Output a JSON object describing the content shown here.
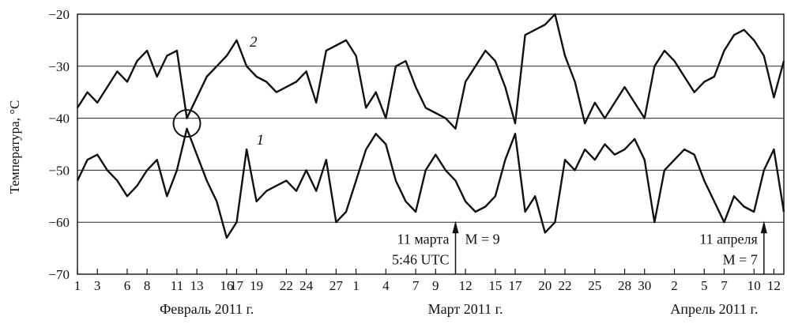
{
  "chart_data": {
    "type": "line",
    "title": "",
    "ylabel": "Температура, °C",
    "xlabel": "",
    "ylim": [
      -70,
      -20
    ],
    "xlim": [
      "2011-02-01",
      "2011-04-13"
    ],
    "grid": "horizontal",
    "y_ticks": [
      -20,
      -30,
      -40,
      -50,
      -60,
      -70
    ],
    "x_ticks": [
      {
        "date": "2011-02-01",
        "label": "1"
      },
      {
        "date": "2011-02-03",
        "label": "3"
      },
      {
        "date": "2011-02-06",
        "label": "6"
      },
      {
        "date": "2011-02-08",
        "label": "8"
      },
      {
        "date": "2011-02-11",
        "label": "11"
      },
      {
        "date": "2011-02-13",
        "label": "13"
      },
      {
        "date": "2011-02-16",
        "label": "16"
      },
      {
        "date": "2011-02-17",
        "label": "17"
      },
      {
        "date": "2011-02-19",
        "label": "19"
      },
      {
        "date": "2011-02-22",
        "label": "22"
      },
      {
        "date": "2011-02-24",
        "label": "24"
      },
      {
        "date": "2011-02-27",
        "label": "27"
      },
      {
        "date": "2011-03-01",
        "label": "1"
      },
      {
        "date": "2011-03-04",
        "label": "4"
      },
      {
        "date": "2011-03-07",
        "label": "7"
      },
      {
        "date": "2011-03-09",
        "label": "9"
      },
      {
        "date": "2011-03-12",
        "label": "12"
      },
      {
        "date": "2011-03-15",
        "label": "15"
      },
      {
        "date": "2011-03-17",
        "label": "17"
      },
      {
        "date": "2011-03-20",
        "label": "20"
      },
      {
        "date": "2011-03-22",
        "label": "22"
      },
      {
        "date": "2011-03-25",
        "label": "25"
      },
      {
        "date": "2011-03-28",
        "label": "28"
      },
      {
        "date": "2011-03-30",
        "label": "30"
      },
      {
        "date": "2011-04-02",
        "label": "2"
      },
      {
        "date": "2011-04-05",
        "label": "5"
      },
      {
        "date": "2011-04-07",
        "label": "7"
      },
      {
        "date": "2011-04-10",
        "label": "10"
      },
      {
        "date": "2011-04-12",
        "label": "12"
      }
    ],
    "month_labels": [
      {
        "center_date": "2011-02-14",
        "text": "Февраль 2011 г."
      },
      {
        "center_date": "2011-03-12",
        "text": "Март 2011 г."
      },
      {
        "center_date": "2011-04-06",
        "text": "Апрель 2011 г."
      }
    ],
    "series": [
      {
        "name": "2",
        "x": [
          "2011-02-01",
          "2011-02-02",
          "2011-02-03",
          "2011-02-04",
          "2011-02-05",
          "2011-02-06",
          "2011-02-07",
          "2011-02-08",
          "2011-02-09",
          "2011-02-10",
          "2011-02-11",
          "2011-02-12",
          "2011-02-13",
          "2011-02-14",
          "2011-02-15",
          "2011-02-16",
          "2011-02-17",
          "2011-02-18",
          "2011-02-19",
          "2011-02-20",
          "2011-02-21",
          "2011-02-22",
          "2011-02-23",
          "2011-02-24",
          "2011-02-25",
          "2011-02-26",
          "2011-02-27",
          "2011-02-28",
          "2011-03-01",
          "2011-03-02",
          "2011-03-03",
          "2011-03-04",
          "2011-03-05",
          "2011-03-06",
          "2011-03-07",
          "2011-03-08",
          "2011-03-09",
          "2011-03-10",
          "2011-03-11",
          "2011-03-12",
          "2011-03-13",
          "2011-03-14",
          "2011-03-15",
          "2011-03-16",
          "2011-03-17",
          "2011-03-18",
          "2011-03-19",
          "2011-03-20",
          "2011-03-21",
          "2011-03-22",
          "2011-03-23",
          "2011-03-24",
          "2011-03-25",
          "2011-03-26",
          "2011-03-27",
          "2011-03-28",
          "2011-03-29",
          "2011-03-30",
          "2011-03-31",
          "2011-04-01",
          "2011-04-02",
          "2011-04-03",
          "2011-04-04",
          "2011-04-05",
          "2011-04-06",
          "2011-04-07",
          "2011-04-08",
          "2011-04-09",
          "2011-04-10",
          "2011-04-11",
          "2011-04-12",
          "2011-04-13"
        ],
        "values": [
          -38,
          -35,
          -37,
          -34,
          -31,
          -33,
          -29,
          -27,
          -32,
          -28,
          -27,
          -40,
          -36,
          -32,
          -30,
          -28,
          -25,
          -30,
          -32,
          -33,
          -35,
          -34,
          -33,
          -31,
          -37,
          -27,
          -26,
          -25,
          -28,
          -38,
          -35,
          -40,
          -30,
          -29,
          -34,
          -38,
          -39,
          -40,
          -42,
          -33,
          -30,
          -27,
          -29,
          -34,
          -41,
          -24,
          -23,
          -22,
          -20,
          -28,
          -33,
          -41,
          -37,
          -40,
          -37,
          -34,
          -37,
          -40,
          -30,
          -27,
          -29,
          -32,
          -35,
          -33,
          -32,
          -27,
          -24,
          -23,
          -25,
          -28,
          -36,
          -29
        ]
      },
      {
        "name": "1",
        "x": [
          "2011-02-01",
          "2011-02-02",
          "2011-02-03",
          "2011-02-04",
          "2011-02-05",
          "2011-02-06",
          "2011-02-07",
          "2011-02-08",
          "2011-02-09",
          "2011-02-10",
          "2011-02-11",
          "2011-02-12",
          "2011-02-13",
          "2011-02-14",
          "2011-02-15",
          "2011-02-16",
          "2011-02-17",
          "2011-02-18",
          "2011-02-19",
          "2011-02-20",
          "2011-02-21",
          "2011-02-22",
          "2011-02-23",
          "2011-02-24",
          "2011-02-25",
          "2011-02-26",
          "2011-02-27",
          "2011-02-28",
          "2011-03-01",
          "2011-03-02",
          "2011-03-03",
          "2011-03-04",
          "2011-03-05",
          "2011-03-06",
          "2011-03-07",
          "2011-03-08",
          "2011-03-09",
          "2011-03-10",
          "2011-03-11",
          "2011-03-12",
          "2011-03-13",
          "2011-03-14",
          "2011-03-15",
          "2011-03-16",
          "2011-03-17",
          "2011-03-18",
          "2011-03-19",
          "2011-03-20",
          "2011-03-21",
          "2011-03-22",
          "2011-03-23",
          "2011-03-24",
          "2011-03-25",
          "2011-03-26",
          "2011-03-27",
          "2011-03-28",
          "2011-03-29",
          "2011-03-30",
          "2011-03-31",
          "2011-04-01",
          "2011-04-02",
          "2011-04-03",
          "2011-04-04",
          "2011-04-05",
          "2011-04-06",
          "2011-04-07",
          "2011-04-08",
          "2011-04-09",
          "2011-04-10",
          "2011-04-11",
          "2011-04-12",
          "2011-04-13"
        ],
        "values": [
          -52,
          -48,
          -47,
          -50,
          -52,
          -55,
          -53,
          -50,
          -48,
          -55,
          -50,
          -42,
          -47,
          -52,
          -56,
          -63,
          -60,
          -46,
          -56,
          -54,
          -53,
          -52,
          -54,
          -50,
          -54,
          -48,
          -60,
          -58,
          -52,
          -46,
          -43,
          -45,
          -52,
          -56,
          -58,
          -50,
          -47,
          -50,
          -52,
          -56,
          -58,
          -57,
          -55,
          -48,
          -43,
          -58,
          -55,
          -62,
          -60,
          -48,
          -50,
          -46,
          -48,
          -45,
          -47,
          -46,
          -44,
          -48,
          -60,
          -50,
          -48,
          -46,
          -47,
          -52,
          -56,
          -60,
          -55,
          -57,
          -58,
          -50,
          -46,
          -58
        ]
      }
    ],
    "annotations": [
      {
        "lines": [
          "11 марта",
          "5:46 UTC"
        ],
        "arrow_date": "2011-03-11",
        "side": "left"
      },
      {
        "lines": [
          "M = 9"
        ],
        "arrow_date": "2011-03-11",
        "side": "right"
      },
      {
        "lines": [
          "11 апреля",
          "M = 7"
        ],
        "arrow_date": "2011-04-11",
        "side": "left"
      }
    ],
    "circle_marker": {
      "date": "2011-02-12",
      "value": -41
    }
  }
}
